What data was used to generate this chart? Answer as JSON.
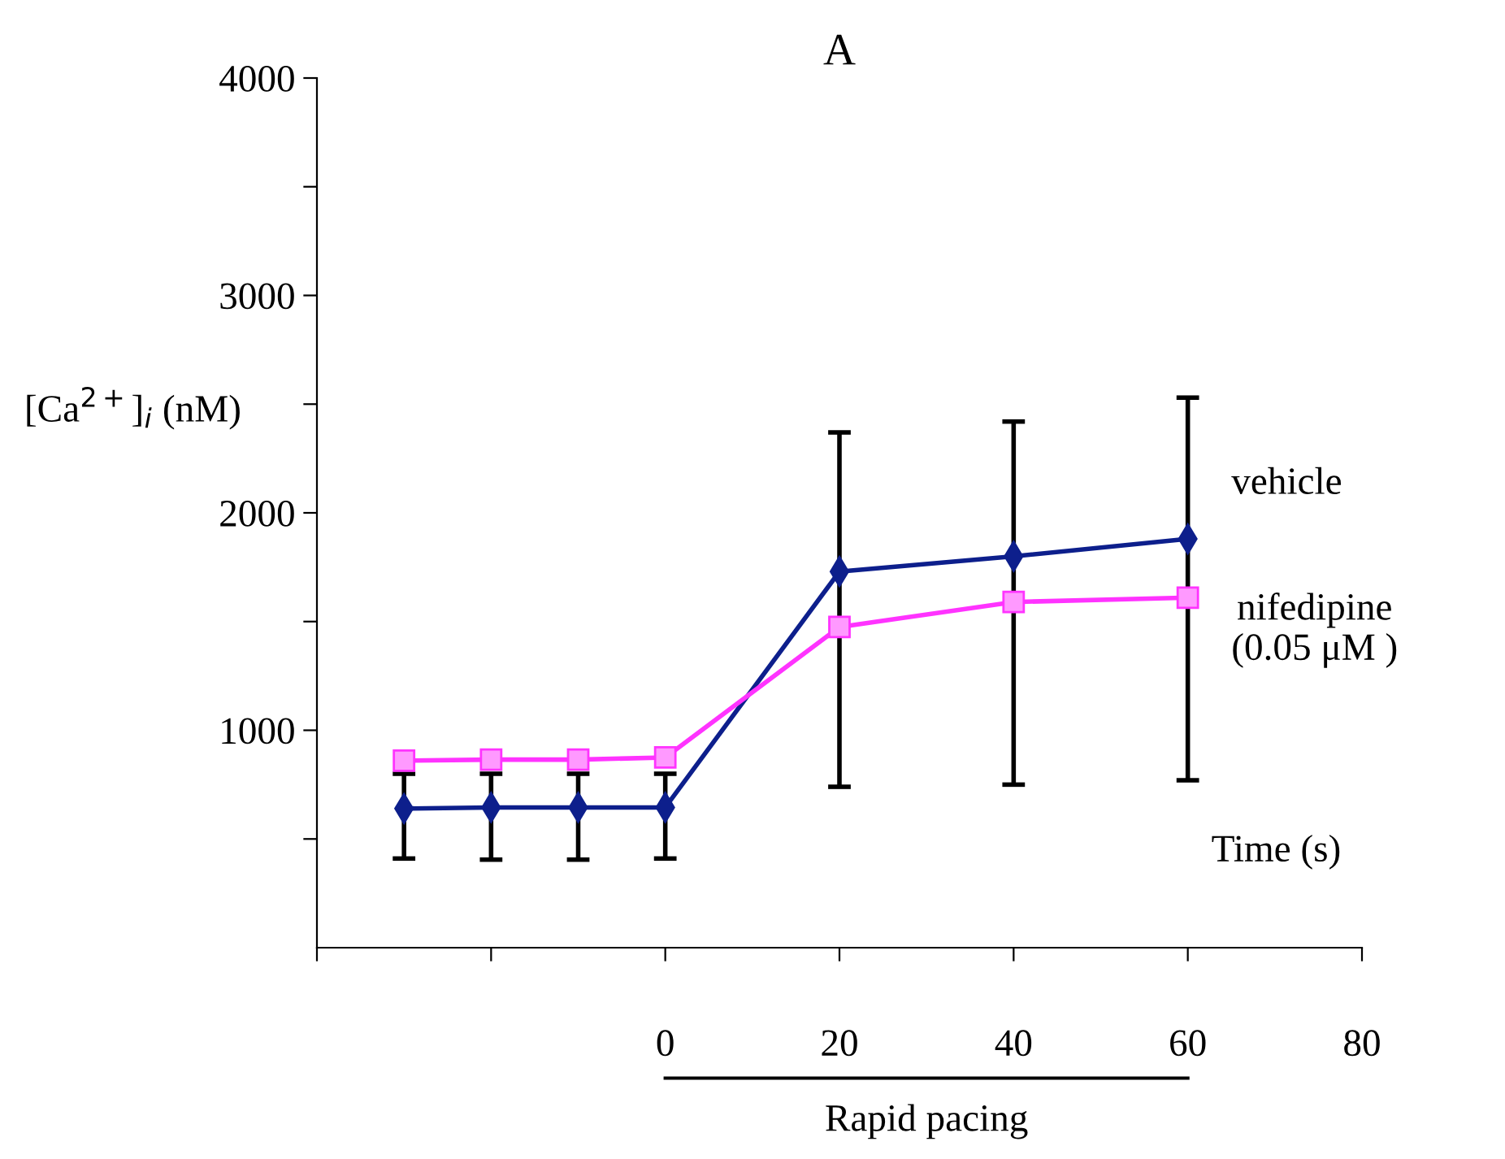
{
  "chart_data": {
    "type": "line",
    "title": "A",
    "xlabel": "Time (s)",
    "ylabel": "[Ca$^{2+}$]$_{i}$ (nM)",
    "x": [
      -30,
      -20,
      -10,
      0,
      20,
      40,
      60
    ],
    "series": [
      {
        "name": "vehicle",
        "color": "#0d1f8c",
        "marker": "diamond",
        "values": [
          640,
          645,
          645,
          645,
          1730,
          1800,
          1880
        ],
        "errors": [
          [
            410,
            800
          ],
          [
            405,
            800
          ],
          [
            405,
            800
          ],
          [
            410,
            800
          ],
          [
            740,
            2370
          ],
          [
            750,
            2420
          ],
          [
            770,
            2530
          ]
        ]
      },
      {
        "name": "nifedipine\n(0.05 μM )",
        "color": "#ff33ff",
        "marker": "square",
        "values": [
          860,
          865,
          865,
          875,
          1475,
          1590,
          1610
        ]
      }
    ],
    "xlim": [
      -40,
      80
    ],
    "xticks": [
      {
        "value": -40,
        "label": null
      },
      {
        "value": -20,
        "label": null
      },
      0,
      20,
      40,
      60,
      80
    ],
    "ylim": [
      0,
      4000
    ],
    "yticks": [
      {
        "value": 500,
        "label": null
      },
      1000,
      {
        "value": 1500,
        "label": null
      },
      2000,
      {
        "value": 2500,
        "label": null
      },
      3000,
      {
        "value": 3500,
        "label": null
      },
      4000
    ],
    "annotations": [
      "Rapid pacing"
    ],
    "grid": false,
    "legend": false,
    "line_style": "solid"
  }
}
